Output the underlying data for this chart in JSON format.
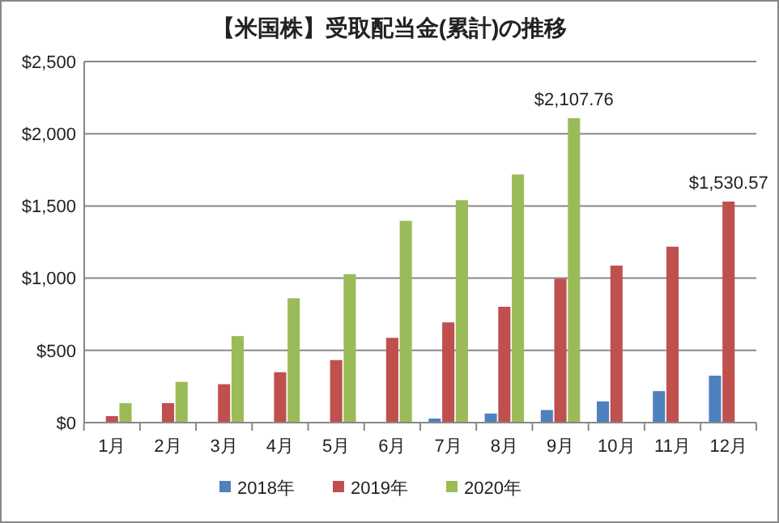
{
  "chart_data": {
    "type": "bar",
    "title": "【米国株】受取配当金(累計)の推移",
    "categories": [
      "1月",
      "2月",
      "3月",
      "4月",
      "5月",
      "6月",
      "7月",
      "8月",
      "9月",
      "10月",
      "11月",
      "12月"
    ],
    "series": [
      {
        "name": "2018年",
        "color": "#4f81bd",
        "values": [
          null,
          null,
          null,
          null,
          null,
          null,
          28,
          63,
          87,
          147,
          218,
          325
        ]
      },
      {
        "name": "2019年",
        "color": "#c0504d",
        "values": [
          45,
          135,
          266,
          349,
          433,
          587,
          694,
          802,
          996,
          1087,
          1218,
          1530.57
        ],
        "value_labels": [
          null,
          null,
          null,
          null,
          null,
          null,
          null,
          null,
          null,
          null,
          null,
          "$1,530.57"
        ]
      },
      {
        "name": "2020年",
        "color": "#9bbb59",
        "values": [
          135,
          282,
          599,
          861,
          1028,
          1397,
          1540,
          1718,
          2107.76,
          null,
          null,
          null
        ],
        "value_labels": [
          null,
          null,
          null,
          null,
          null,
          null,
          null,
          null,
          "$2,107.76",
          null,
          null,
          null
        ]
      }
    ],
    "ylim": [
      0,
      2500
    ],
    "yticks": [
      {
        "value": 0,
        "label": "$0"
      },
      {
        "value": 500,
        "label": "$500"
      },
      {
        "value": 1000,
        "label": "$1,000"
      },
      {
        "value": 1500,
        "label": "$1,500"
      },
      {
        "value": 2000,
        "label": "$2,000"
      },
      {
        "value": 2500,
        "label": "$2,500"
      }
    ],
    "grid": "y",
    "legend": "bottom"
  }
}
